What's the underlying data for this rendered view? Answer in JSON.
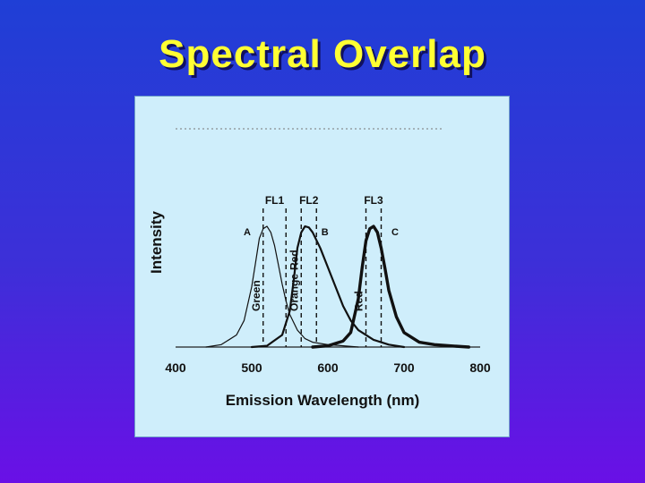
{
  "slide": {
    "title": "Spectral Overlap"
  },
  "chart_data": {
    "type": "line",
    "title": "",
    "xlabel": "Emission Wavelength (nm)",
    "ylabel": "Intensity",
    "xlim": [
      400,
      800
    ],
    "x_ticks": [
      "400",
      "500",
      "600",
      "700",
      "800"
    ],
    "ylim": [
      0,
      1
    ],
    "grid": false,
    "series": [
      {
        "name": "A",
        "line": "thin",
        "peak": 520,
        "x": [
          440,
          460,
          480,
          490,
          500,
          505,
          510,
          515,
          520,
          525,
          530,
          535,
          540,
          545,
          550,
          560,
          570,
          580,
          600,
          620,
          640
        ],
        "y": [
          0.0,
          0.02,
          0.1,
          0.22,
          0.5,
          0.7,
          0.9,
          0.98,
          1.0,
          0.95,
          0.84,
          0.68,
          0.52,
          0.38,
          0.27,
          0.14,
          0.07,
          0.04,
          0.02,
          0.01,
          0.0
        ]
      },
      {
        "name": "B",
        "line": "medium",
        "peak": 575,
        "x": [
          500,
          520,
          540,
          550,
          555,
          560,
          565,
          570,
          575,
          580,
          590,
          600,
          610,
          620,
          630,
          640,
          660,
          680,
          700
        ],
        "y": [
          0.0,
          0.01,
          0.1,
          0.3,
          0.55,
          0.82,
          0.95,
          1.0,
          0.99,
          0.95,
          0.82,
          0.66,
          0.5,
          0.34,
          0.22,
          0.14,
          0.06,
          0.02,
          0.0
        ]
      },
      {
        "name": "C",
        "line": "thick",
        "peak": 660,
        "x": [
          580,
          600,
          620,
          630,
          640,
          645,
          650,
          655,
          660,
          665,
          670,
          675,
          680,
          690,
          700,
          720,
          740,
          760,
          785
        ],
        "y": [
          0.0,
          0.01,
          0.05,
          0.12,
          0.4,
          0.66,
          0.88,
          0.98,
          1.0,
          0.95,
          0.82,
          0.65,
          0.47,
          0.25,
          0.12,
          0.04,
          0.02,
          0.01,
          0.0
        ]
      }
    ],
    "detector_windows": [
      {
        "name": "FL1",
        "range": [
          515,
          545
        ],
        "channel": "Green"
      },
      {
        "name": "FL2",
        "range": [
          565,
          585
        ],
        "channel": "Orange-Red"
      },
      {
        "name": "FL3",
        "range": [
          650,
          670
        ],
        "channel": "Red"
      }
    ]
  }
}
